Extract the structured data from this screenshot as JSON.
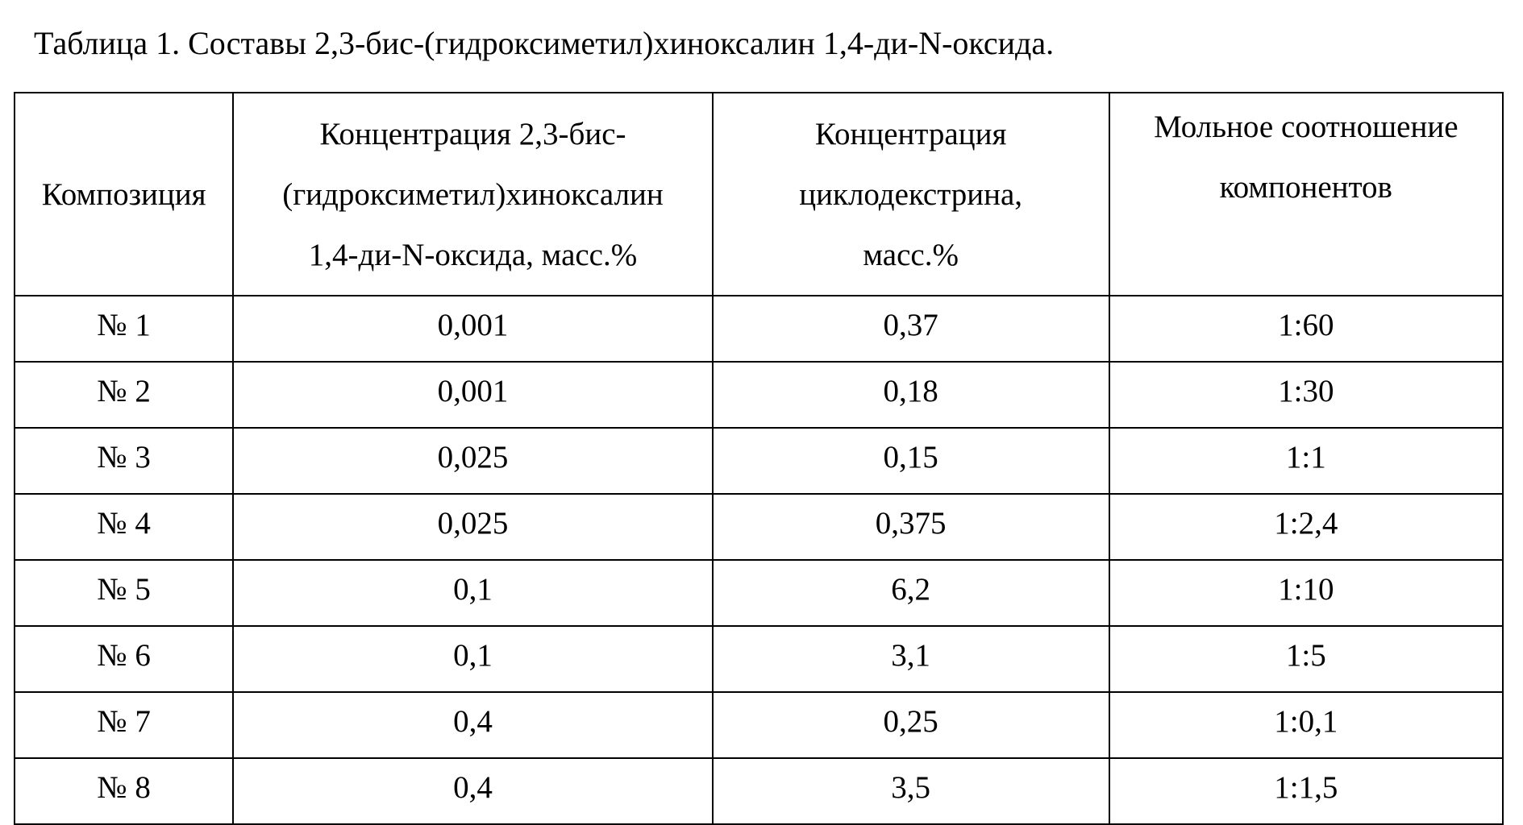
{
  "title": "Таблица 1. Составы 2,3-бис-(гидроксиметил)хиноксалин 1,4-ди-N-оксида.",
  "table": {
    "headers": [
      [
        "Композиция"
      ],
      [
        "Концентрация 2,3-бис-",
        "(гидроксиметил)хиноксалин",
        "1,4-ди-N-оксида, масс.%"
      ],
      [
        "Концентрация",
        "циклодекстрина,",
        "масс.%"
      ],
      [
        "Мольное соотношение",
        "компонентов"
      ]
    ],
    "rows": [
      [
        "№ 1",
        "0,001",
        "0,37",
        "1:60"
      ],
      [
        "№ 2",
        "0,001",
        "0,18",
        "1:30"
      ],
      [
        "№ 3",
        "0,025",
        "0,15",
        "1:1"
      ],
      [
        "№ 4",
        "0,025",
        "0,375",
        "1:2,4"
      ],
      [
        "№ 5",
        "0,1",
        "6,2",
        "1:10"
      ],
      [
        "№ 6",
        "0,1",
        "3,1",
        "1:5"
      ],
      [
        "№ 7",
        "0,4",
        "0,25",
        "1:0,1"
      ],
      [
        "№ 8",
        "0,4",
        "3,5",
        "1:1,5"
      ]
    ]
  }
}
